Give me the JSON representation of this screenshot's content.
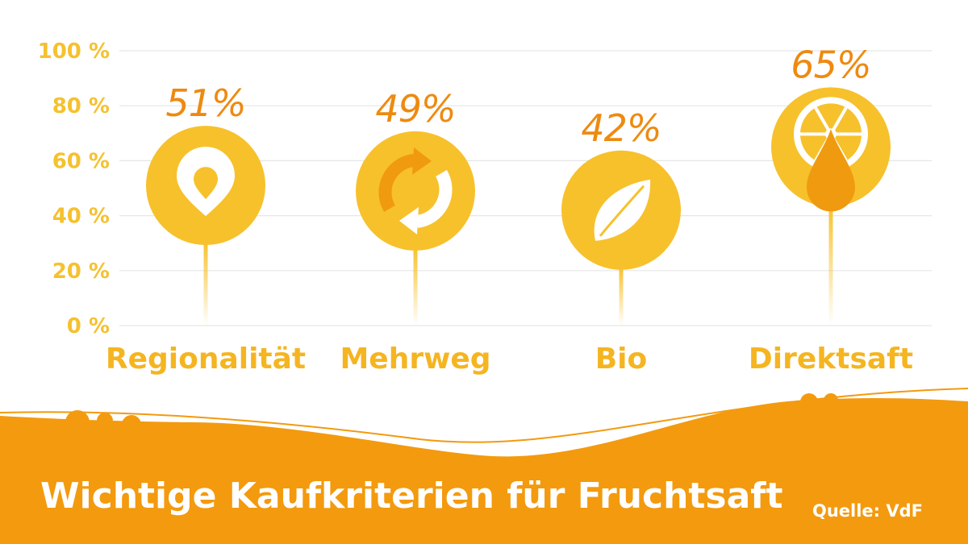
{
  "title": "Wichtige Kaufkriterien für Fruchtsaft",
  "source": "Quelle: VdF",
  "colors": {
    "circle": "#f7c12c",
    "icon_accent": "#f09a10",
    "label": "#f5b521",
    "value": "#ee8a10",
    "wave": "#f39a0e",
    "grid": "#e6e6e6"
  },
  "chart_data": {
    "type": "bar",
    "categories": [
      "Regionalität",
      "Mehrweg",
      "Bio",
      "Direktsaft"
    ],
    "values": [
      51,
      49,
      42,
      65
    ],
    "value_labels": [
      "51%",
      "49%",
      "42%",
      "65%"
    ],
    "icons": [
      "location-pin-icon",
      "recycle-arrows-icon",
      "leaf-icon",
      "orange-juice-drop-icon"
    ],
    "yticks": [
      "0 %",
      "20 %",
      "40 %",
      "60 %",
      "80 %",
      "100 %"
    ],
    "ylim": [
      0,
      100
    ],
    "grid": true
  }
}
